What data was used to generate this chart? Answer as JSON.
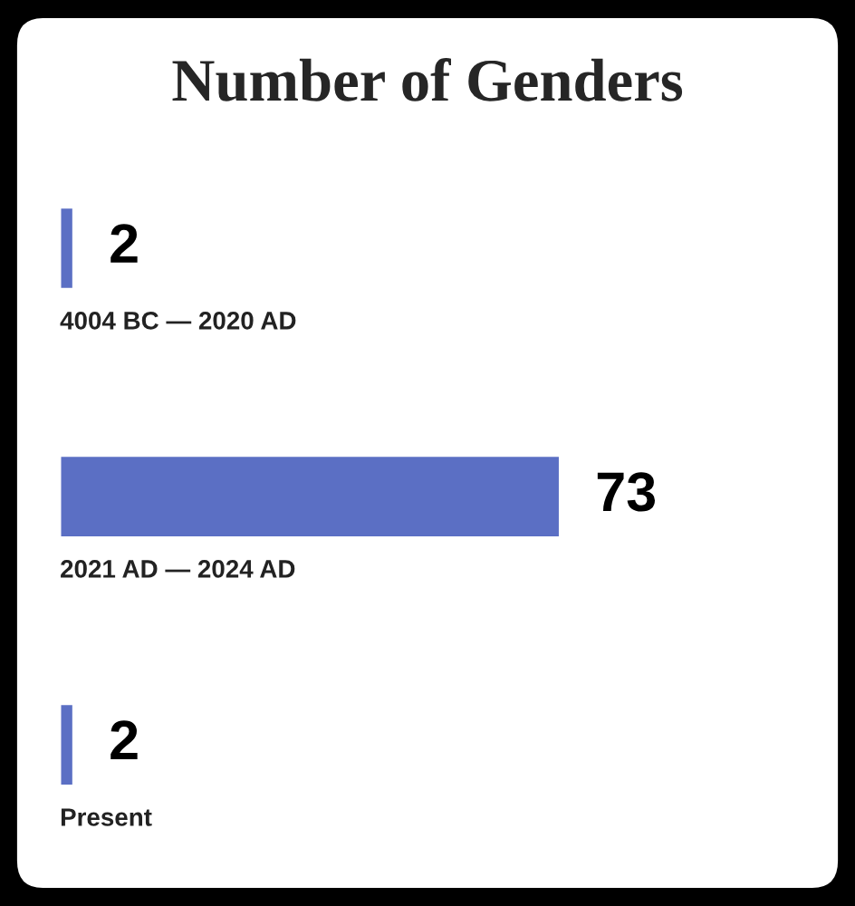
{
  "chart_data": {
    "type": "bar",
    "orientation": "horizontal",
    "title": "Number of Genders",
    "categories": [
      "4004 BC — 2020 AD",
      "2021 AD — 2024 AD",
      "Present"
    ],
    "values": [
      2,
      73,
      2
    ],
    "color": "#5b6fc4",
    "data_labels": true,
    "legend": false
  }
}
